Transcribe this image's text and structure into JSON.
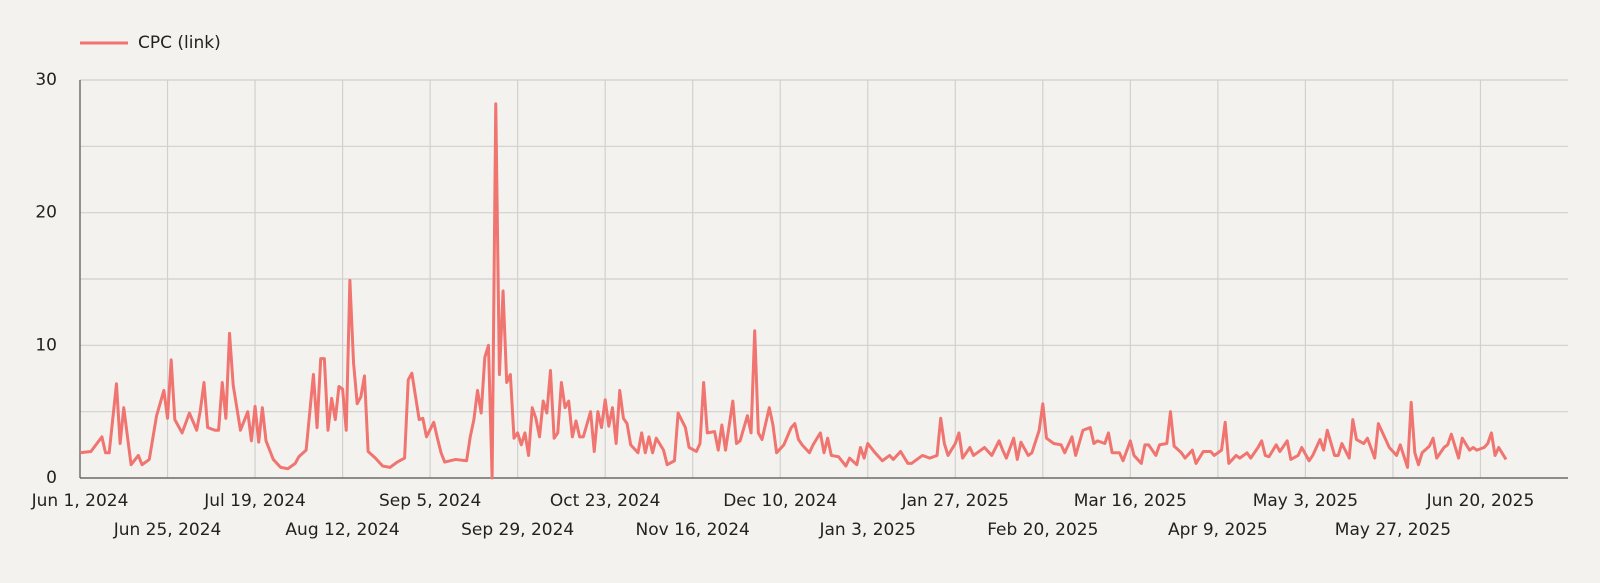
{
  "chart_data": {
    "type": "line",
    "x": [
      "2024-06-01",
      "2024-06-04",
      "2024-06-07",
      "2024-06-08",
      "2024-06-09",
      "2024-06-11",
      "2024-06-12",
      "2024-06-13",
      "2024-06-15",
      "2024-06-17",
      "2024-06-18",
      "2024-06-20",
      "2024-06-22",
      "2024-06-24",
      "2024-06-25",
      "2024-06-26",
      "2024-06-27",
      "2024-06-29",
      "2024-07-01",
      "2024-07-03",
      "2024-07-04",
      "2024-07-05",
      "2024-07-06",
      "2024-07-08",
      "2024-07-09",
      "2024-07-10",
      "2024-07-11",
      "2024-07-12",
      "2024-07-13",
      "2024-07-15",
      "2024-07-17",
      "2024-07-18",
      "2024-07-19",
      "2024-07-20",
      "2024-07-21",
      "2024-07-22",
      "2024-07-24",
      "2024-07-26",
      "2024-07-28",
      "2024-07-30",
      "2024-07-31",
      "2024-08-02",
      "2024-08-04",
      "2024-08-05",
      "2024-08-06",
      "2024-08-07",
      "2024-08-08",
      "2024-08-09",
      "2024-08-10",
      "2024-08-11",
      "2024-08-12",
      "2024-08-13",
      "2024-08-14",
      "2024-08-15",
      "2024-08-16",
      "2024-08-17",
      "2024-08-18",
      "2024-08-19",
      "2024-08-21",
      "2024-08-23",
      "2024-08-25",
      "2024-08-27",
      "2024-08-29",
      "2024-08-30",
      "2024-08-31",
      "2024-09-02",
      "2024-09-03",
      "2024-09-04",
      "2024-09-06",
      "2024-09-07",
      "2024-09-08",
      "2024-09-09",
      "2024-09-12",
      "2024-09-15",
      "2024-09-16",
      "2024-09-17",
      "2024-09-18",
      "2024-09-19",
      "2024-09-20",
      "2024-09-21",
      "2024-09-22",
      "2024-09-23",
      "2024-09-24",
      "2024-09-25",
      "2024-09-26",
      "2024-09-27",
      "2024-09-28",
      "2024-09-29",
      "2024-09-30",
      "2024-10-01",
      "2024-10-02",
      "2024-10-03",
      "2024-10-04",
      "2024-10-05",
      "2024-10-06",
      "2024-10-07",
      "2024-10-08",
      "2024-10-09",
      "2024-10-10",
      "2024-10-11",
      "2024-10-12",
      "2024-10-13",
      "2024-10-14",
      "2024-10-15",
      "2024-10-16",
      "2024-10-17",
      "2024-10-19",
      "2024-10-20",
      "2024-10-21",
      "2024-10-22",
      "2024-10-23",
      "2024-10-24",
      "2024-10-25",
      "2024-10-26",
      "2024-10-27",
      "2024-10-28",
      "2024-10-29",
      "2024-10-30",
      "2024-11-01",
      "2024-11-02",
      "2024-11-03",
      "2024-11-04",
      "2024-11-05",
      "2024-11-06",
      "2024-11-08",
      "2024-11-09",
      "2024-11-11",
      "2024-11-12",
      "2024-11-14",
      "2024-11-15",
      "2024-11-17",
      "2024-11-18",
      "2024-11-19",
      "2024-11-20",
      "2024-11-22",
      "2024-11-23",
      "2024-11-24",
      "2024-11-25",
      "2024-11-27",
      "2024-11-28",
      "2024-11-29",
      "2024-12-01",
      "2024-12-02",
      "2024-12-03",
      "2024-12-04",
      "2024-12-05",
      "2024-12-07",
      "2024-12-08",
      "2024-12-09",
      "2024-12-11",
      "2024-12-13",
      "2024-12-14",
      "2024-12-15",
      "2024-12-16",
      "2024-12-18",
      "2024-12-19",
      "2024-12-21",
      "2024-12-22",
      "2024-12-23",
      "2024-12-24",
      "2024-12-26",
      "2024-12-28",
      "2024-12-29",
      "2024-12-31",
      "2025-01-01",
      "2025-01-02",
      "2025-01-03",
      "2025-01-05",
      "2025-01-07",
      "2025-01-09",
      "2025-01-10",
      "2025-01-12",
      "2025-01-14",
      "2025-01-15",
      "2025-01-17",
      "2025-01-18",
      "2025-01-20",
      "2025-01-22",
      "2025-01-23",
      "2025-01-24",
      "2025-01-25",
      "2025-01-27",
      "2025-01-28",
      "2025-01-29",
      "2025-01-31",
      "2025-02-01",
      "2025-02-02",
      "2025-02-04",
      "2025-02-06",
      "2025-02-08",
      "2025-02-09",
      "2025-02-10",
      "2025-02-12",
      "2025-02-13",
      "2025-02-14",
      "2025-02-16",
      "2025-02-17",
      "2025-02-19",
      "2025-02-20",
      "2025-02-21",
      "2025-02-23",
      "2025-02-25",
      "2025-02-26",
      "2025-02-28",
      "2025-03-01",
      "2025-03-03",
      "2025-03-05",
      "2025-03-06",
      "2025-03-07",
      "2025-03-09",
      "2025-03-10",
      "2025-03-11",
      "2025-03-13",
      "2025-03-14",
      "2025-03-16",
      "2025-03-17",
      "2025-03-19",
      "2025-03-20",
      "2025-03-21",
      "2025-03-23",
      "2025-03-24",
      "2025-03-26",
      "2025-03-27",
      "2025-03-28",
      "2025-03-30",
      "2025-03-31",
      "2025-04-02",
      "2025-04-03",
      "2025-04-05",
      "2025-04-07",
      "2025-04-08",
      "2025-04-10",
      "2025-04-11",
      "2025-04-12",
      "2025-04-14",
      "2025-04-15",
      "2025-04-17",
      "2025-04-18",
      "2025-04-20",
      "2025-04-21",
      "2025-04-22",
      "2025-04-23",
      "2025-04-25",
      "2025-04-26",
      "2025-04-28",
      "2025-04-29",
      "2025-05-01",
      "2025-05-02",
      "2025-05-04",
      "2025-05-05",
      "2025-05-07",
      "2025-05-08",
      "2025-05-09",
      "2025-05-11",
      "2025-05-12",
      "2025-05-13",
      "2025-05-15",
      "2025-05-16",
      "2025-05-17",
      "2025-05-19",
      "2025-05-20",
      "2025-05-22",
      "2025-05-23",
      "2025-05-25",
      "2025-05-26",
      "2025-05-28",
      "2025-05-29",
      "2025-05-31",
      "2025-06-01",
      "2025-06-02",
      "2025-06-03",
      "2025-06-04",
      "2025-06-06",
      "2025-06-07",
      "2025-06-08",
      "2025-06-10",
      "2025-06-11",
      "2025-06-12",
      "2025-06-14",
      "2025-06-15",
      "2025-06-17",
      "2025-06-18",
      "2025-06-19",
      "2025-06-21",
      "2025-06-22",
      "2025-06-23",
      "2025-06-24",
      "2025-06-25",
      "2025-06-27"
    ],
    "series": [
      {
        "name": "CPC (link)",
        "color": "#f07470",
        "values": [
          1.9,
          2.0,
          3.1,
          1.9,
          1.9,
          7.1,
          2.6,
          5.3,
          1.0,
          1.7,
          1.0,
          1.4,
          4.7,
          6.6,
          4.5,
          8.9,
          4.4,
          3.4,
          4.9,
          3.6,
          5.1,
          7.2,
          3.8,
          3.6,
          3.6,
          7.2,
          4.5,
          10.9,
          7.0,
          3.6,
          5.0,
          2.8,
          5.4,
          2.7,
          5.3,
          2.8,
          1.4,
          0.8,
          0.7,
          1.1,
          1.6,
          2.1,
          7.8,
          3.8,
          9.0,
          9.0,
          3.6,
          6.0,
          4.4,
          6.9,
          6.7,
          3.6,
          14.9,
          8.7,
          5.6,
          6.1,
          7.7,
          2.0,
          1.5,
          0.9,
          0.8,
          1.2,
          1.5,
          7.4,
          7.9,
          4.4,
          4.5,
          3.1,
          4.2,
          3.0,
          1.9,
          1.2,
          1.4,
          1.3,
          3.1,
          4.4,
          6.6,
          4.9,
          9.1,
          10.0,
          0,
          28.2,
          7.8,
          14.1,
          7.2,
          7.8,
          3.0,
          3.4,
          2.5,
          3.4,
          1.7,
          5.3,
          4.5,
          3.1,
          5.8,
          4.9,
          8.1,
          3.0,
          3.4,
          7.2,
          5.3,
          5.8,
          3.1,
          4.3,
          3.1,
          3.1,
          5.0,
          2.0,
          5.0,
          3.8,
          5.9,
          3.9,
          5.3,
          2.6,
          6.6,
          4.5,
          4.1,
          2.5,
          1.9,
          3.4,
          1.9,
          3.1,
          1.9,
          3.0,
          2.1,
          1.0,
          1.3,
          4.9,
          3.8,
          2.3,
          2.0,
          2.6,
          7.2,
          3.4,
          3.5,
          2.1,
          4.0,
          2.1,
          5.8,
          2.6,
          2.8,
          4.7,
          3.4,
          11.1,
          3.4,
          2.9,
          5.3,
          4.0,
          1.9,
          2.5,
          3.8,
          4.1,
          2.9,
          2.5,
          1.9,
          2.5,
          3.4,
          1.9,
          3.0,
          1.7,
          1.6,
          0.9,
          1.5,
          1.0,
          2.3,
          1.5,
          2.6,
          1.9,
          1.3,
          1.7,
          1.4,
          2.0,
          1.1,
          1.1,
          1.5,
          1.7,
          1.5,
          1.7,
          4.5,
          2.6,
          1.7,
          2.6,
          3.4,
          1.5,
          2.3,
          1.7,
          1.9,
          2.3,
          1.7,
          2.8,
          2.1,
          1.5,
          3.0,
          1.4,
          2.7,
          1.7,
          1.9,
          3.6,
          5.6,
          3.0,
          2.6,
          2.5,
          1.9,
          3.1,
          1.7,
          3.6,
          3.8,
          2.6,
          2.8,
          2.6,
          3.4,
          1.9,
          1.9,
          1.3,
          2.8,
          1.7,
          1.1,
          2.5,
          2.5,
          1.7,
          2.5,
          2.6,
          5.0,
          2.4,
          1.9,
          1.5,
          2.1,
          1.1,
          2.0,
          2.0,
          1.7,
          2.1,
          4.2,
          1.1,
          1.7,
          1.5,
          1.9,
          1.5,
          2.3,
          2.8,
          1.7,
          1.6,
          2.5,
          2.0,
          2.8,
          1.4,
          1.7,
          2.3,
          1.3,
          1.7,
          2.9,
          2.1,
          3.6,
          1.7,
          1.7,
          2.6,
          1.5,
          4.4,
          2.9,
          2.6,
          3.0,
          1.5,
          4.1,
          2.9,
          2.3,
          1.7,
          2.5,
          0.8,
          5.7,
          1.9,
          1.0,
          1.9,
          2.4,
          3.0,
          1.5,
          2.3,
          2.5,
          3.3,
          1.5,
          3.0,
          2.1,
          2.3,
          2.1,
          2.3,
          2.6,
          3.4,
          1.7,
          2.3,
          1.4
        ]
      }
    ],
    "xlim": [
      "2024-06-01",
      "2025-07-14"
    ],
    "xticks": [
      {
        "value": "2024-06-01",
        "label": "Jun 1, 2024"
      },
      {
        "value": "2024-06-25",
        "label": "Jun 25, 2024"
      },
      {
        "value": "2024-07-19",
        "label": "Jul 19, 2024"
      },
      {
        "value": "2024-08-12",
        "label": "Aug 12, 2024"
      },
      {
        "value": "2024-09-05",
        "label": "Sep 5, 2024"
      },
      {
        "value": "2024-09-29",
        "label": "Sep 29, 2024"
      },
      {
        "value": "2024-10-23",
        "label": "Oct 23, 2024"
      },
      {
        "value": "2024-11-16",
        "label": "Nov 16, 2024"
      },
      {
        "value": "2024-12-10",
        "label": "Dec 10, 2024"
      },
      {
        "value": "2025-01-03",
        "label": "Jan 3, 2025"
      },
      {
        "value": "2025-01-27",
        "label": "Jan 27, 2025"
      },
      {
        "value": "2025-02-20",
        "label": "Feb 20, 2025"
      },
      {
        "value": "2025-03-16",
        "label": "Mar 16, 2025"
      },
      {
        "value": "2025-04-09",
        "label": "Apr 9, 2025"
      },
      {
        "value": "2025-05-03",
        "label": "May 3, 2025"
      },
      {
        "value": "2025-05-27",
        "label": "May 27, 2025"
      },
      {
        "value": "2025-06-20",
        "label": "Jun 20, 2025"
      }
    ],
    "ylim": [
      0,
      30
    ],
    "yticks": [
      0,
      10,
      20,
      30
    ],
    "y_minor_gridlines": [
      5,
      15,
      25
    ],
    "grid": true,
    "legend": "top-left"
  }
}
